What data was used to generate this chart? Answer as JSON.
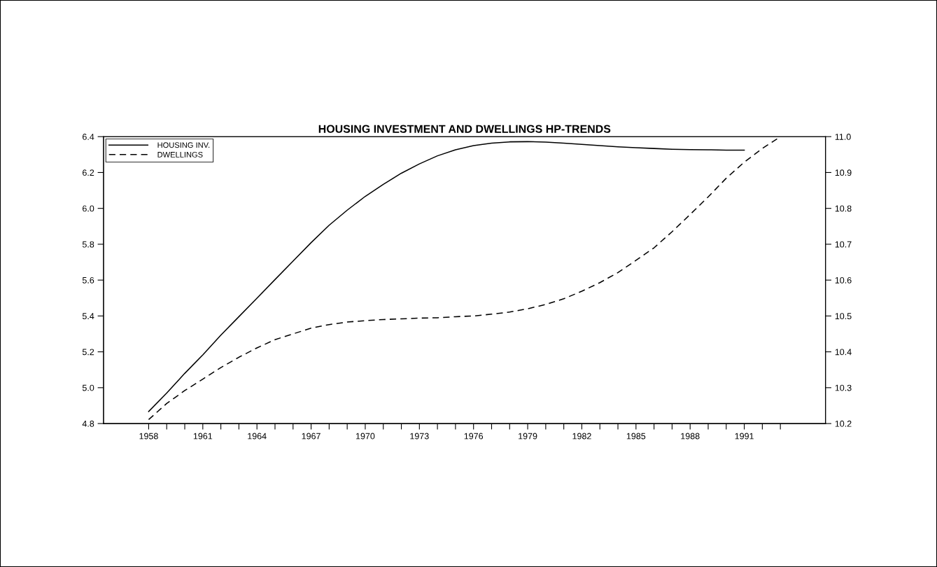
{
  "chart_data": {
    "type": "line",
    "title": "HOUSING INVESTMENT AND DWELLINGS HP-TRENDS",
    "x": [
      1958,
      1959,
      1960,
      1961,
      1962,
      1963,
      1964,
      1965,
      1966,
      1967,
      1968,
      1969,
      1970,
      1971,
      1972,
      1973,
      1974,
      1975,
      1976,
      1977,
      1978,
      1979,
      1980,
      1981,
      1982,
      1983,
      1984,
      1985,
      1986,
      1987,
      1988,
      1989,
      1990,
      1991,
      1992,
      1993
    ],
    "series": [
      {
        "name": "HOUSING INV.",
        "color": "#000000",
        "line_style": "solid",
        "values": [
          4.867,
          4.97,
          5.08,
          5.183,
          5.293,
          5.396,
          5.499,
          5.603,
          5.706,
          5.809,
          5.906,
          5.99,
          6.067,
          6.134,
          6.196,
          6.248,
          6.293,
          6.327,
          6.35,
          6.364,
          6.371,
          6.372,
          6.37,
          6.364,
          6.357,
          6.35,
          6.343,
          6.338,
          6.334,
          6.33,
          6.328,
          6.327,
          6.325,
          6.325,
          null,
          null
        ]
      },
      {
        "name": "DWELLINGS",
        "color": "#000000",
        "line_style": "dashed",
        "axis": "y2",
        "values": [
          10.211,
          10.256,
          10.292,
          10.324,
          10.356,
          10.385,
          10.411,
          10.434,
          10.45,
          10.466,
          10.476,
          10.483,
          10.487,
          10.49,
          10.492,
          10.494,
          10.495,
          10.498,
          10.5,
          10.505,
          10.511,
          10.52,
          10.532,
          10.548,
          10.569,
          10.593,
          10.621,
          10.655,
          10.69,
          10.735,
          10.783,
          10.832,
          10.884,
          10.929,
          10.967,
          11.0
        ]
      }
    ],
    "xlim": [
      1955.5,
      1995.5
    ],
    "xticks": [
      1958,
      {
        "value": 1959,
        "label": null
      },
      {
        "value": 1960,
        "label": null
      },
      1961,
      {
        "value": 1962,
        "label": null
      },
      {
        "value": 1963,
        "label": null
      },
      1964,
      {
        "value": 1965,
        "label": null
      },
      {
        "value": 1966,
        "label": null
      },
      1967,
      {
        "value": 1968,
        "label": null
      },
      {
        "value": 1969,
        "label": null
      },
      1970,
      {
        "value": 1971,
        "label": null
      },
      {
        "value": 1972,
        "label": null
      },
      1973,
      {
        "value": 1974,
        "label": null
      },
      {
        "value": 1975,
        "label": null
      },
      1976,
      {
        "value": 1977,
        "label": null
      },
      {
        "value": 1978,
        "label": null
      },
      1979,
      {
        "value": 1980,
        "label": null
      },
      {
        "value": 1981,
        "label": null
      },
      1982,
      {
        "value": 1983,
        "label": null
      },
      {
        "value": 1984,
        "label": null
      },
      1985,
      {
        "value": 1986,
        "label": null
      },
      {
        "value": 1987,
        "label": null
      },
      1988,
      {
        "value": 1989,
        "label": null
      },
      {
        "value": 1990,
        "label": null
      },
      1991,
      {
        "value": 1992,
        "label": null
      },
      {
        "value": 1993,
        "label": null
      }
    ],
    "ylim": [
      4.8,
      6.4
    ],
    "yticks": [
      {
        "value": 4.8,
        "label": "4.8"
      },
      {
        "value": 5.0,
        "label": "5.0"
      },
      {
        "value": 5.2,
        "label": "5.2"
      },
      {
        "value": 5.4,
        "label": "5.4"
      },
      {
        "value": 5.6,
        "label": "5.6"
      },
      {
        "value": 5.8,
        "label": "5.8"
      },
      {
        "value": 6.0,
        "label": "6.0"
      },
      {
        "value": 6.2,
        "label": "6.2"
      },
      {
        "value": 6.4,
        "label": "6.4"
      }
    ],
    "y2lim": [
      10.2,
      11.0
    ],
    "y2ticks": [
      {
        "value": 10.2,
        "label": "10.2"
      },
      {
        "value": 10.3,
        "label": "10.3"
      },
      {
        "value": 10.4,
        "label": "10.4"
      },
      {
        "value": 10.5,
        "label": "10.5"
      },
      {
        "value": 10.6,
        "label": "10.6"
      },
      {
        "value": 10.7,
        "label": "10.7"
      },
      {
        "value": 10.8,
        "label": "10.8"
      },
      {
        "value": 10.9,
        "label": "10.9"
      },
      {
        "value": 11.0,
        "label": "11.0"
      }
    ],
    "legend": "top left",
    "grid": false,
    "marker": "none"
  }
}
